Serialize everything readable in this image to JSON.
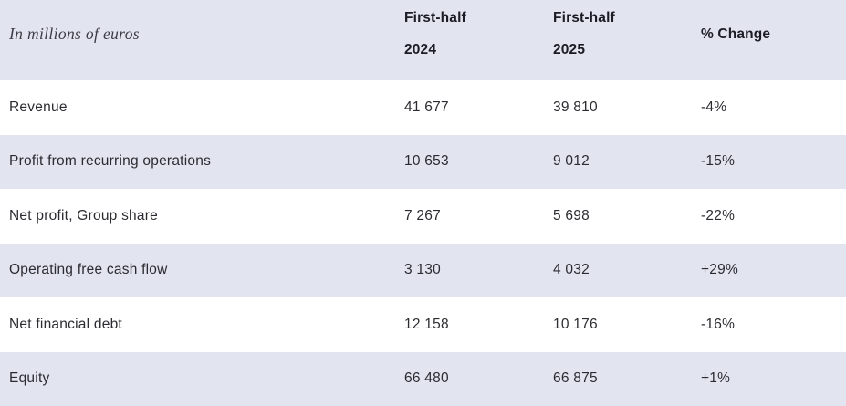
{
  "table": {
    "unit_label": "In millions of euros",
    "columns": {
      "fh2024": {
        "line1": "First-half",
        "line2": "2024"
      },
      "fh2025": {
        "line1": "First-half",
        "line2": "2025"
      },
      "change": {
        "label": "% Change"
      }
    },
    "rows": [
      {
        "label": "Revenue",
        "fh2024": "41 677",
        "fh2025": "39 810",
        "change": "-4%"
      },
      {
        "label": "Profit from recurring operations",
        "fh2024": "10 653",
        "fh2025": "9 012",
        "change": "-15%"
      },
      {
        "label": "Net profit, Group share",
        "fh2024": "7 267",
        "fh2025": "5 698",
        "change": "-22%"
      },
      {
        "label": "Operating free cash flow",
        "fh2024": "3 130",
        "fh2025": "4 032",
        "change": "+29%"
      },
      {
        "label": "Net financial debt",
        "fh2024": "12 158",
        "fh2025": "10 176",
        "change": "-16%"
      },
      {
        "label": "Equity",
        "fh2024": "66 480",
        "fh2025": "66 875",
        "change": "+1%"
      }
    ]
  },
  "colors": {
    "row_shade": "#e2e4ef",
    "row_plain": "#ffffff",
    "header_text": "#1c1c24",
    "body_text": "#2b2b31",
    "unit_label_text": "#3c3c46"
  }
}
